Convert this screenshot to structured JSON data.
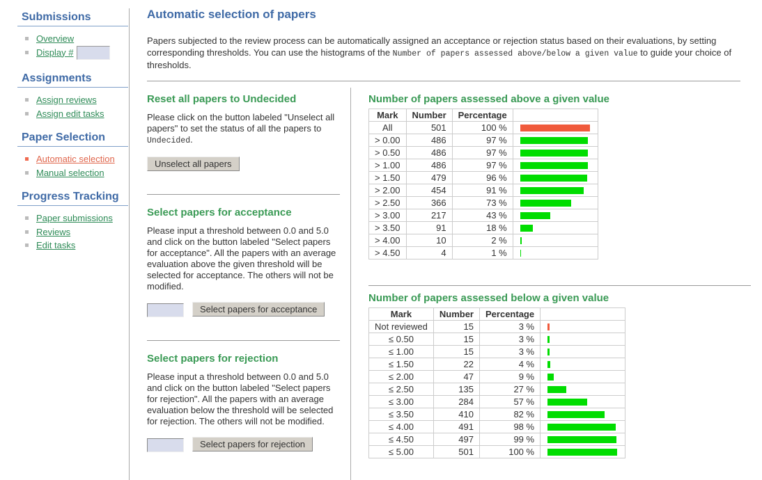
{
  "sidebar": {
    "sections": [
      {
        "title": "Submissions",
        "items": [
          {
            "label": "Overview"
          },
          {
            "label": "Display #",
            "input": true
          }
        ]
      },
      {
        "title": "Assignments",
        "items": [
          {
            "label": "Assign reviews"
          },
          {
            "label": "Assign edit tasks"
          }
        ]
      },
      {
        "title": "Paper Selection",
        "items": [
          {
            "label": "Automatic selection",
            "active": true
          },
          {
            "label": "Manual selection"
          }
        ]
      },
      {
        "title": "Progress Tracking",
        "items": [
          {
            "label": "Paper submissions"
          },
          {
            "label": "Reviews"
          },
          {
            "label": "Edit tasks"
          }
        ]
      }
    ]
  },
  "main": {
    "title": "Automatic selection of papers",
    "intro": [
      "Papers subjected to the review process can be automatically assigned an acceptance or rejection status based on their evaluations, by setting corresponding thresholds. You can use the histograms of the ",
      "Number of papers assessed above/below a given value",
      " to guide your choice of thresholds."
    ],
    "sections": [
      {
        "heading": "Reset all papers to Undecided",
        "text": [
          "Please click on the button labeled \"Unselect all papers\" to set the status of all the papers to ",
          "Undecided",
          "."
        ],
        "button": "Unselect all papers",
        "input": false
      },
      {
        "heading": "Select papers for acceptance",
        "text": [
          "Please input a threshold between 0.0 and 5.0 and click on the button labeled \"Select papers for acceptance\". All the papers with an average evaluation above the given threshold will be selected for acceptance. The others will not be modified."
        ],
        "button": "Select papers for acceptance",
        "input": true
      },
      {
        "heading": "Select papers for rejection",
        "text": [
          "Please input a threshold between 0.0 and 5.0 and click on the button labeled \"Select papers for rejection\". All the papers with an average evaluation below the threshold will be selected for rejection. The others will not be modified."
        ],
        "button": "Select papers for rejection",
        "input": true
      }
    ],
    "tables": [
      {
        "title": "Number of papers assessed above a given value",
        "columns": [
          "Mark",
          "Number",
          "Percentage"
        ],
        "rows": [
          {
            "mark": "All",
            "number": 501,
            "percentage": {
              "value": 100,
              "label": "100 %"
            },
            "color": "#f05a3c"
          },
          {
            "mark": "> 0.00",
            "number": 486,
            "percentage": {
              "value": 97,
              "label": "97 %"
            },
            "color": "#00dd00"
          },
          {
            "mark": "> 0.50",
            "number": 486,
            "percentage": {
              "value": 97,
              "label": "97 %"
            },
            "color": "#00dd00"
          },
          {
            "mark": "> 1.00",
            "number": 486,
            "percentage": {
              "value": 97,
              "label": "97 %"
            },
            "color": "#00dd00"
          },
          {
            "mark": "> 1.50",
            "number": 479,
            "percentage": {
              "value": 96,
              "label": "96 %"
            },
            "color": "#00dd00"
          },
          {
            "mark": "> 2.00",
            "number": 454,
            "percentage": {
              "value": 91,
              "label": "91 %"
            },
            "color": "#00dd00"
          },
          {
            "mark": "> 2.50",
            "number": 366,
            "percentage": {
              "value": 73,
              "label": "73 %"
            },
            "color": "#00dd00"
          },
          {
            "mark": "> 3.00",
            "number": 217,
            "percentage": {
              "value": 43,
              "label": "43 %"
            },
            "color": "#00dd00"
          },
          {
            "mark": "> 3.50",
            "number": 91,
            "percentage": {
              "value": 18,
              "label": "18 %"
            },
            "color": "#00dd00"
          },
          {
            "mark": "> 4.00",
            "number": 10,
            "percentage": {
              "value": 2,
              "label": "2 %"
            },
            "color": "#00dd00"
          },
          {
            "mark": "> 4.50",
            "number": 4,
            "percentage": {
              "value": 1,
              "label": "1 %"
            },
            "color": "#00dd00"
          }
        ]
      },
      {
        "title": "Number of papers assessed below a given value",
        "columns": [
          "Mark",
          "Number",
          "Percentage"
        ],
        "rows": [
          {
            "mark": "Not reviewed",
            "number": 15,
            "percentage": {
              "value": 3,
              "label": "3 %"
            },
            "color": "#f05a3c"
          },
          {
            "mark": "≤ 0.50",
            "number": 15,
            "percentage": {
              "value": 3,
              "label": "3 %"
            },
            "color": "#00dd00"
          },
          {
            "mark": "≤ 1.00",
            "number": 15,
            "percentage": {
              "value": 3,
              "label": "3 %"
            },
            "color": "#00dd00"
          },
          {
            "mark": "≤ 1.50",
            "number": 22,
            "percentage": {
              "value": 4,
              "label": "4 %"
            },
            "color": "#00dd00"
          },
          {
            "mark": "≤ 2.00",
            "number": 47,
            "percentage": {
              "value": 9,
              "label": "9 %"
            },
            "color": "#00dd00"
          },
          {
            "mark": "≤ 2.50",
            "number": 135,
            "percentage": {
              "value": 27,
              "label": "27 %"
            },
            "color": "#00dd00"
          },
          {
            "mark": "≤ 3.00",
            "number": 284,
            "percentage": {
              "value": 57,
              "label": "57 %"
            },
            "color": "#00dd00"
          },
          {
            "mark": "≤ 3.50",
            "number": 410,
            "percentage": {
              "value": 82,
              "label": "82 %"
            },
            "color": "#00dd00"
          },
          {
            "mark": "≤ 4.00",
            "number": 491,
            "percentage": {
              "value": 98,
              "label": "98 %"
            },
            "color": "#00dd00"
          },
          {
            "mark": "≤ 4.50",
            "number": 497,
            "percentage": {
              "value": 99,
              "label": "99 %"
            },
            "color": "#00dd00"
          },
          {
            "mark": "≤ 5.00",
            "number": 501,
            "percentage": {
              "value": 100,
              "label": "100 %"
            },
            "color": "#00dd00"
          }
        ]
      }
    ]
  }
}
